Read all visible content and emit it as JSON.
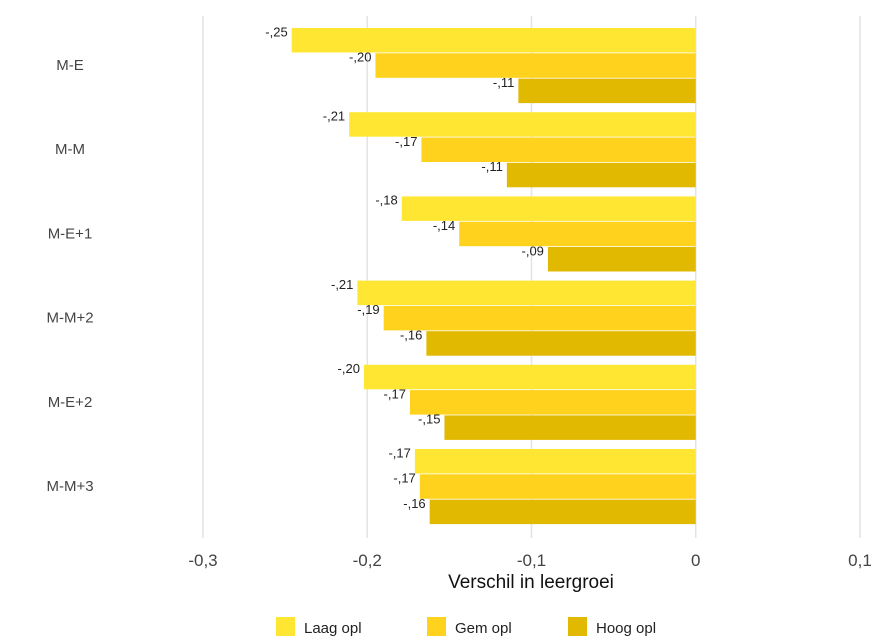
{
  "chart_data": {
    "type": "bar",
    "orientation": "horizontal",
    "categories": [
      "M-E",
      "M-M",
      "M-E+1",
      "M-M+2",
      "M-E+2",
      "M-M+3"
    ],
    "series": [
      {
        "name": "Laag opl",
        "values": [
          -0.246,
          -0.211,
          -0.179,
          -0.206,
          -0.202,
          -0.171
        ],
        "labels": [
          "-,25",
          "-,21",
          "-,18",
          "-,21",
          "-,20",
          "-,17"
        ],
        "color": "#FFE633"
      },
      {
        "name": "Gem opl",
        "values": [
          -0.195,
          -0.167,
          -0.144,
          -0.19,
          -0.174,
          -0.168
        ],
        "labels": [
          "-,20",
          "-,17",
          "-,14",
          "-,19",
          "-,17",
          "-,17"
        ],
        "color": "#FFD21E"
      },
      {
        "name": "Hoog opl",
        "values": [
          -0.108,
          -0.115,
          -0.09,
          -0.164,
          -0.153,
          -0.162
        ],
        "labels": [
          "-,11",
          "-,11",
          "-,09",
          "-,16",
          "-,15",
          "-,16"
        ],
        "color": "#E1B900"
      }
    ],
    "xlabel": "Verschil in leergroei",
    "ylabel": "",
    "xlim": [
      -0.3,
      0.1
    ],
    "xticks": [
      -0.3,
      -0.2,
      -0.1,
      0,
      0.1
    ],
    "xtick_labels": [
      "-0,3",
      "-0,2",
      "-0,1",
      "0",
      "0,1"
    ],
    "grid": "vertical",
    "legend": "bottom"
  }
}
